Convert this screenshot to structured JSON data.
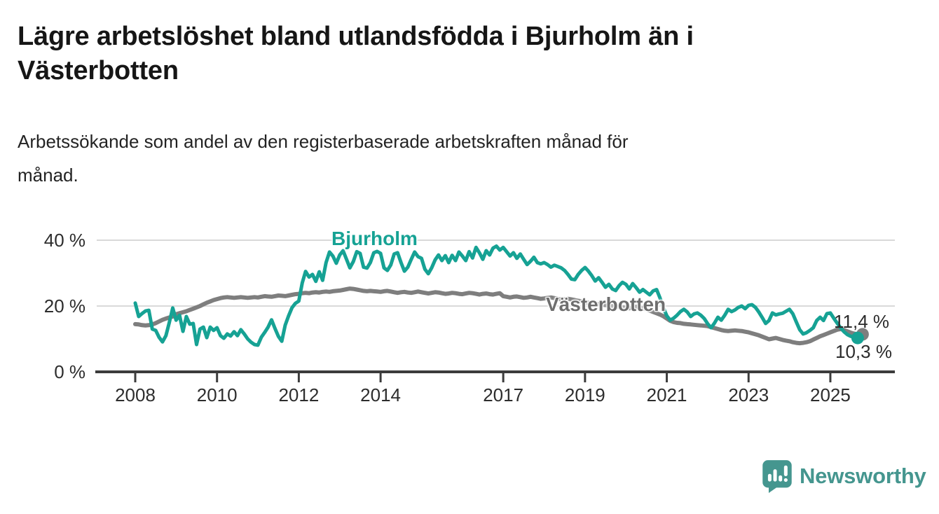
{
  "title_lines": [
    "Lägre arbetslöshet bland utlandsfödda i Bjurholm än i",
    "Västerbotten"
  ],
  "subtitle_lines": [
    "Arbetssökande som andel av den registerbaserade arbetskraften månad för",
    "månad."
  ],
  "branding": {
    "logo_text": "Newsworthy",
    "logo_color": "#45968f"
  },
  "chart_data": {
    "type": "line",
    "title": "Lägre arbetslöshet bland utlandsfödda i Bjurholm än i Västerbotten",
    "subtitle": "Arbetssökande som andel av den registerbaserade arbetskraften månad för månad.",
    "x_start": "2008-01",
    "x_end": "2025-09",
    "frequency": "monthly",
    "grid": "horizontal",
    "ylim": [
      0,
      44
    ],
    "y_ticks": [
      {
        "label": "0 %",
        "value": 0
      },
      {
        "label": "20 %",
        "value": 20
      },
      {
        "label": "40 %",
        "value": 40
      }
    ],
    "x_ticks": [
      {
        "label": "2008",
        "year": 2008
      },
      {
        "label": "2010",
        "year": 2010
      },
      {
        "label": "2012",
        "year": 2012
      },
      {
        "label": "2014",
        "year": 2014
      },
      {
        "label": "2017",
        "year": 2017
      },
      {
        "label": "2019",
        "year": 2019
      },
      {
        "label": "2021",
        "year": 2021
      },
      {
        "label": "2023",
        "year": 2023
      },
      {
        "label": "2025",
        "year": 2025
      }
    ],
    "series": [
      {
        "name": "Bjurholm",
        "color": "#16a294",
        "end_label": "10,3 %",
        "end_value": 10.3,
        "values": [
          20.9,
          16.8,
          17.7,
          18.5,
          18.7,
          13.0,
          12.6,
          10.5,
          9.1,
          11.0,
          15.0,
          19.4,
          15.7,
          17.2,
          12.3,
          16.8,
          14.5,
          14.7,
          8.3,
          13.0,
          13.6,
          10.4,
          13.6,
          12.6,
          13.4,
          11.0,
          10.2,
          11.5,
          10.9,
          12.2,
          11.0,
          12.8,
          11.5,
          10.0,
          9.0,
          8.3,
          8.1,
          10.5,
          12.0,
          13.6,
          15.8,
          13.2,
          10.8,
          9.3,
          14.2,
          17.0,
          19.5,
          20.8,
          21.5,
          27.0,
          30.5,
          28.8,
          29.6,
          27.5,
          30.4,
          27.8,
          33.2,
          36.4,
          35.2,
          33.0,
          35.5,
          36.8,
          34.2,
          31.6,
          33.5,
          36.5,
          36.0,
          31.8,
          31.5,
          33.2,
          36.2,
          36.6,
          36.0,
          31.6,
          30.8,
          32.5,
          35.8,
          36.2,
          33.2,
          30.6,
          31.8,
          34.2,
          36.4,
          35.0,
          34.5,
          31.2,
          29.8,
          31.6,
          34.0,
          35.5,
          33.8,
          35.3,
          33.2,
          35.4,
          33.8,
          36.4,
          35.2,
          33.8,
          36.5,
          34.6,
          37.8,
          36.2,
          34.2,
          36.8,
          35.5,
          37.6,
          38.2,
          37.0,
          37.8,
          36.5,
          35.2,
          36.2,
          34.5,
          35.8,
          34.2,
          32.6,
          33.6,
          34.8,
          33.2,
          32.8,
          33.2,
          32.6,
          31.8,
          32.4,
          32.0,
          31.6,
          30.8,
          29.6,
          28.2,
          28.0,
          29.6,
          30.8,
          31.7,
          30.6,
          29.2,
          27.6,
          28.6,
          27.2,
          25.7,
          26.6,
          25.2,
          24.7,
          26.2,
          27.2,
          26.6,
          25.2,
          26.8,
          25.6,
          24.2,
          25.0,
          24.2,
          23.4,
          24.6,
          25.0,
          22.5,
          19.5,
          17.0,
          15.7,
          16.3,
          17.2,
          18.3,
          19.0,
          18.2,
          16.8,
          17.6,
          17.9,
          17.2,
          16.2,
          14.6,
          13.4,
          14.8,
          16.6,
          15.7,
          17.2,
          19.0,
          18.3,
          18.8,
          19.6,
          20.0,
          19.2,
          20.2,
          20.4,
          19.6,
          18.2,
          16.5,
          14.7,
          15.6,
          17.9,
          17.3,
          17.6,
          17.8,
          18.4,
          19.0,
          17.6,
          15.2,
          12.8,
          11.5,
          11.9,
          12.6,
          13.4,
          15.6,
          16.6,
          15.6,
          17.7,
          17.9,
          16.3,
          14.8,
          13.4,
          12.2,
          11.3,
          10.8,
          10.5,
          10.3
        ]
      },
      {
        "name": "Västerbotten",
        "color": "#7e7e7e",
        "end_label": "11,4 %",
        "end_value": 11.4,
        "values": [
          14.5,
          14.4,
          14.2,
          14.1,
          14.2,
          14.4,
          14.8,
          15.3,
          15.8,
          16.2,
          16.5,
          16.8,
          17.5,
          17.8,
          18.1,
          18.4,
          18.8,
          19.2,
          19.6,
          20.0,
          20.5,
          21.0,
          21.4,
          21.8,
          22.1,
          22.4,
          22.6,
          22.7,
          22.6,
          22.5,
          22.6,
          22.7,
          22.6,
          22.5,
          22.6,
          22.7,
          22.6,
          22.8,
          23.0,
          22.9,
          22.8,
          23.0,
          23.2,
          23.1,
          23.0,
          23.2,
          23.4,
          23.6,
          23.7,
          23.9,
          24.0,
          23.9,
          24.1,
          24.2,
          24.1,
          24.3,
          24.4,
          24.3,
          24.5,
          24.6,
          24.7,
          24.9,
          25.1,
          25.3,
          25.2,
          25.0,
          24.8,
          24.6,
          24.5,
          24.6,
          24.5,
          24.4,
          24.3,
          24.5,
          24.6,
          24.4,
          24.2,
          24.0,
          24.2,
          24.3,
          24.1,
          24.0,
          24.2,
          24.4,
          24.2,
          24.0,
          23.8,
          24.0,
          24.2,
          24.1,
          23.9,
          23.7,
          23.8,
          24.0,
          23.9,
          23.7,
          23.6,
          23.8,
          24.0,
          23.9,
          23.7,
          23.5,
          23.7,
          23.8,
          23.6,
          23.5,
          23.7,
          23.9,
          23.0,
          22.8,
          22.6,
          22.8,
          22.9,
          22.7,
          22.5,
          22.6,
          22.8,
          22.6,
          22.4,
          22.2,
          22.3,
          22.5,
          22.6,
          22.4,
          22.2,
          22.0,
          22.1,
          22.2,
          22.0,
          21.8,
          21.6,
          21.4,
          21.2,
          21.0,
          20.9,
          20.7,
          20.6,
          20.4,
          20.3,
          20.1,
          20.0,
          19.9,
          19.7,
          19.6,
          19.5,
          19.3,
          19.6,
          19.8,
          19.6,
          19.3,
          19.0,
          18.6,
          18.2,
          17.8,
          17.4,
          16.9,
          16.2,
          15.5,
          15.1,
          14.9,
          14.8,
          14.6,
          14.5,
          14.4,
          14.3,
          14.2,
          14.1,
          14.0,
          13.9,
          13.6,
          13.3,
          13.0,
          12.7,
          12.5,
          12.4,
          12.5,
          12.6,
          12.5,
          12.4,
          12.2,
          12.0,
          11.7,
          11.4,
          11.1,
          10.7,
          10.3,
          9.9,
          10.1,
          10.3,
          10.0,
          9.7,
          9.5,
          9.3,
          9.0,
          8.8,
          8.7,
          8.8,
          9.0,
          9.3,
          9.8,
          10.3,
          10.8,
          11.2,
          11.6,
          12.0,
          12.4,
          12.8,
          13.0,
          12.7,
          12.3,
          11.9,
          11.6,
          11.4
        ]
      }
    ],
    "colors": {
      "grid": "#d9d9d9",
      "axis": "#3c3c3c",
      "tick_text": "#2d2d2d"
    },
    "legend_position": "inline-labels"
  }
}
